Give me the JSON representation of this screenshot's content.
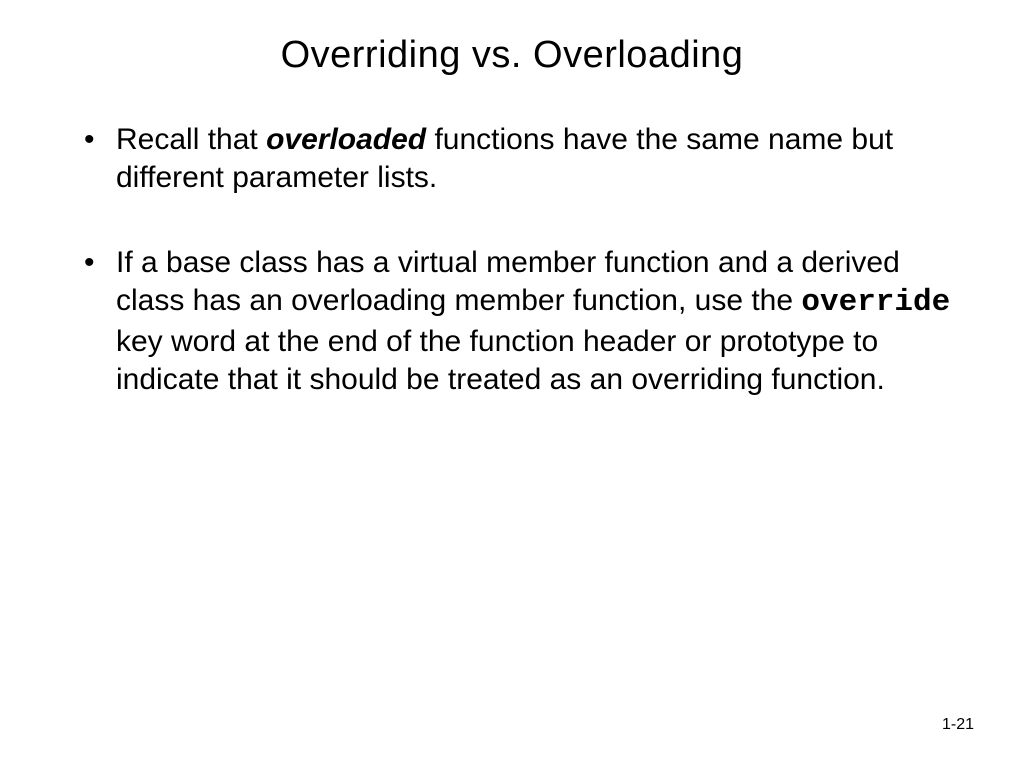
{
  "title": "Overriding  vs. Overloading",
  "bullets": [
    {
      "pre": "Recall that  ",
      "em": "overloaded",
      "post": "  functions have the same name but different parameter lists."
    },
    {
      "pre": "If a base class has a virtual member function and a derived class has an overloading member function, use the ",
      "code": "override",
      "post": " key word at the end of the function header or prototype to indicate that it should be treated as an overriding function."
    }
  ],
  "page_number": "1-21",
  "colors": {
    "background": "#ffffff",
    "text": "#000000"
  },
  "typography": {
    "title_fontsize": 38,
    "body_fontsize": 30,
    "mono_fontsize": 31,
    "pagenum_fontsize": 16
  }
}
